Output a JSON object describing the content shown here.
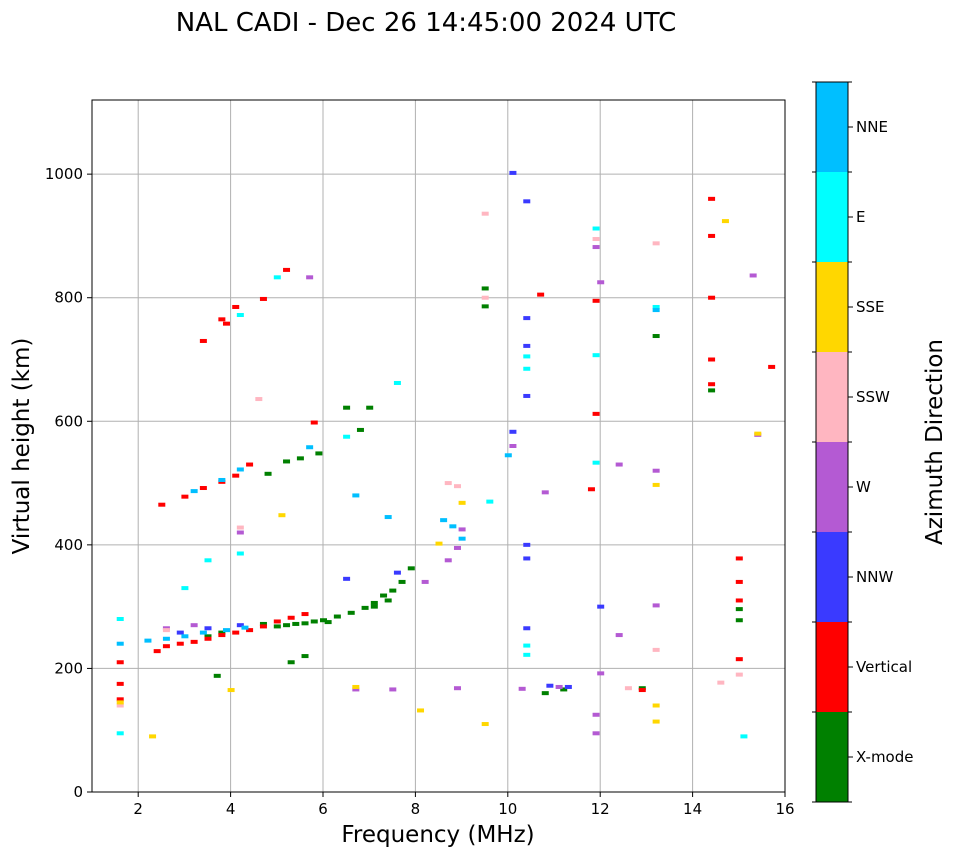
{
  "chart_data": {
    "type": "scatter",
    "title": "NAL CADI - Dec 26 14:45:00 2024 UTC",
    "xlabel": "Frequency (MHz)",
    "ylabel": "Virtual height (km)",
    "xlim": [
      1.0,
      16.0
    ],
    "ylim": [
      0,
      1120
    ],
    "xticks": [
      2,
      4,
      6,
      8,
      10,
      12,
      14,
      16
    ],
    "yticks": [
      0,
      200,
      400,
      600,
      800,
      1000
    ],
    "grid": true,
    "colorbar": {
      "label": "Azimuth Direction",
      "categories": [
        "X-mode",
        "Vertical",
        "NNW",
        "W",
        "SSW",
        "SSE",
        "E",
        "NNE"
      ],
      "colors": [
        "#008000",
        "#ff0000",
        "#3a3aff",
        "#b45ad3",
        "#ffb6c1",
        "#ffd700",
        "#00ffff",
        "#00bfff"
      ]
    },
    "series": [
      {
        "name": "X-mode",
        "points": [
          [
            4.7,
            272
          ],
          [
            5.0,
            268
          ],
          [
            5.4,
            272
          ],
          [
            5.8,
            276
          ],
          [
            6.0,
            278
          ],
          [
            6.3,
            284
          ],
          [
            6.6,
            290
          ],
          [
            6.9,
            298
          ],
          [
            7.1,
            306
          ],
          [
            7.3,
            318
          ],
          [
            7.5,
            326
          ],
          [
            7.7,
            340
          ],
          [
            7.9,
            362
          ],
          [
            7.1,
            300
          ],
          [
            7.4,
            310
          ],
          [
            6.1,
            275
          ],
          [
            5.6,
            273
          ],
          [
            5.2,
            270
          ],
          [
            3.5,
            252
          ],
          [
            3.8,
            258
          ],
          [
            5.3,
            210
          ],
          [
            5.6,
            220
          ],
          [
            3.7,
            188
          ],
          [
            5.2,
            535
          ],
          [
            5.5,
            540
          ],
          [
            5.9,
            548
          ],
          [
            4.8,
            515
          ],
          [
            6.5,
            622
          ],
          [
            7.0,
            622
          ],
          [
            6.8,
            586
          ],
          [
            9.5,
            815
          ],
          [
            9.5,
            786
          ],
          [
            13.2,
            738
          ],
          [
            10.8,
            160
          ],
          [
            11.2,
            166
          ],
          [
            12.9,
            168
          ],
          [
            15.0,
            278
          ],
          [
            15.0,
            296
          ],
          [
            14.4,
            650
          ]
        ]
      },
      {
        "name": "Vertical",
        "points": [
          [
            1.6,
            150
          ],
          [
            1.6,
            175
          ],
          [
            1.6,
            210
          ],
          [
            2.4,
            228
          ],
          [
            2.6,
            236
          ],
          [
            2.9,
            240
          ],
          [
            3.2,
            243
          ],
          [
            3.5,
            248
          ],
          [
            3.8,
            254
          ],
          [
            4.1,
            258
          ],
          [
            4.4,
            262
          ],
          [
            4.7,
            268
          ],
          [
            5.0,
            276
          ],
          [
            5.3,
            282
          ],
          [
            5.6,
            288
          ],
          [
            2.5,
            465
          ],
          [
            3.0,
            478
          ],
          [
            3.4,
            492
          ],
          [
            3.8,
            502
          ],
          [
            4.1,
            512
          ],
          [
            4.4,
            530
          ],
          [
            3.4,
            730
          ],
          [
            3.8,
            765
          ],
          [
            3.9,
            758
          ],
          [
            4.1,
            785
          ],
          [
            4.7,
            798
          ],
          [
            5.2,
            845
          ],
          [
            5.8,
            598
          ],
          [
            10.7,
            805
          ],
          [
            11.9,
            795
          ],
          [
            11.9,
            612
          ],
          [
            11.8,
            490
          ],
          [
            12.9,
            165
          ],
          [
            15.0,
            310
          ],
          [
            15.0,
            340
          ],
          [
            15.0,
            378
          ],
          [
            15.7,
            688
          ],
          [
            14.4,
            960
          ],
          [
            14.4,
            900
          ],
          [
            14.4,
            800
          ],
          [
            14.4,
            700
          ],
          [
            14.4,
            660
          ],
          [
            15.0,
            215
          ]
        ]
      },
      {
        "name": "NNW",
        "points": [
          [
            2.9,
            258
          ],
          [
            3.5,
            265
          ],
          [
            4.2,
            270
          ],
          [
            6.5,
            345
          ],
          [
            7.6,
            355
          ],
          [
            10.1,
            1002
          ],
          [
            10.4,
            956
          ],
          [
            10.4,
            767
          ],
          [
            10.4,
            722
          ],
          [
            10.4,
            400
          ],
          [
            10.4,
            378
          ],
          [
            10.1,
            583
          ],
          [
            10.4,
            641
          ],
          [
            10.4,
            265
          ],
          [
            10.9,
            172
          ],
          [
            11.3,
            170
          ],
          [
            12.0,
            300
          ]
        ]
      },
      {
        "name": "W",
        "points": [
          [
            2.6,
            265
          ],
          [
            3.2,
            270
          ],
          [
            4.2,
            420
          ],
          [
            5.7,
            833
          ],
          [
            6.7,
            166
          ],
          [
            7.5,
            166
          ],
          [
            8.2,
            340
          ],
          [
            8.7,
            375
          ],
          [
            8.9,
            395
          ],
          [
            9.0,
            425
          ],
          [
            8.9,
            168
          ],
          [
            10.1,
            560
          ],
          [
            10.3,
            167
          ],
          [
            10.8,
            485
          ],
          [
            11.1,
            170
          ],
          [
            11.9,
            882
          ],
          [
            12.0,
            825
          ],
          [
            12.0,
            192
          ],
          [
            12.4,
            530
          ],
          [
            12.4,
            254
          ],
          [
            13.2,
            520
          ],
          [
            13.2,
            302
          ],
          [
            11.9,
            125
          ],
          [
            11.9,
            95
          ],
          [
            15.3,
            836
          ],
          [
            15.4,
            578
          ]
        ]
      },
      {
        "name": "SSW",
        "points": [
          [
            1.6,
            140
          ],
          [
            2.6,
            262
          ],
          [
            4.2,
            428
          ],
          [
            4.6,
            636
          ],
          [
            8.7,
            500
          ],
          [
            8.9,
            495
          ],
          [
            9.5,
            936
          ],
          [
            9.5,
            800
          ],
          [
            11.9,
            895
          ],
          [
            12.6,
            168
          ],
          [
            13.2,
            888
          ],
          [
            13.2,
            230
          ],
          [
            14.6,
            177
          ],
          [
            15.0,
            190
          ]
        ]
      },
      {
        "name": "SSE",
        "points": [
          [
            1.6,
            145
          ],
          [
            2.3,
            90
          ],
          [
            4.0,
            165
          ],
          [
            5.1,
            448
          ],
          [
            6.7,
            170
          ],
          [
            8.1,
            132
          ],
          [
            8.5,
            402
          ],
          [
            9.0,
            468
          ],
          [
            9.5,
            110
          ],
          [
            13.2,
            497
          ],
          [
            13.2,
            140
          ],
          [
            13.2,
            114
          ],
          [
            14.7,
            924
          ],
          [
            15.4,
            580
          ]
        ]
      },
      {
        "name": "E",
        "points": [
          [
            1.6,
            95
          ],
          [
            1.6,
            280
          ],
          [
            3.0,
            330
          ],
          [
            3.5,
            375
          ],
          [
            4.2,
            386
          ],
          [
            4.2,
            772
          ],
          [
            5.0,
            833
          ],
          [
            6.5,
            575
          ],
          [
            7.6,
            662
          ],
          [
            9.6,
            470
          ],
          [
            10.4,
            705
          ],
          [
            10.4,
            685
          ],
          [
            10.4,
            237
          ],
          [
            10.4,
            222
          ],
          [
            11.9,
            912
          ],
          [
            11.9,
            707
          ],
          [
            11.9,
            533
          ],
          [
            13.2,
            785
          ],
          [
            15.1,
            90
          ]
        ]
      },
      {
        "name": "NNE",
        "points": [
          [
            1.6,
            240
          ],
          [
            2.2,
            245
          ],
          [
            2.6,
            248
          ],
          [
            3.0,
            252
          ],
          [
            3.4,
            258
          ],
          [
            3.9,
            262
          ],
          [
            4.3,
            266
          ],
          [
            3.2,
            487
          ],
          [
            3.8,
            505
          ],
          [
            4.2,
            522
          ],
          [
            5.7,
            558
          ],
          [
            6.7,
            480
          ],
          [
            7.4,
            445
          ],
          [
            8.6,
            440
          ],
          [
            8.8,
            430
          ],
          [
            9.0,
            410
          ],
          [
            10.0,
            545
          ],
          [
            13.2,
            780
          ]
        ]
      }
    ]
  }
}
